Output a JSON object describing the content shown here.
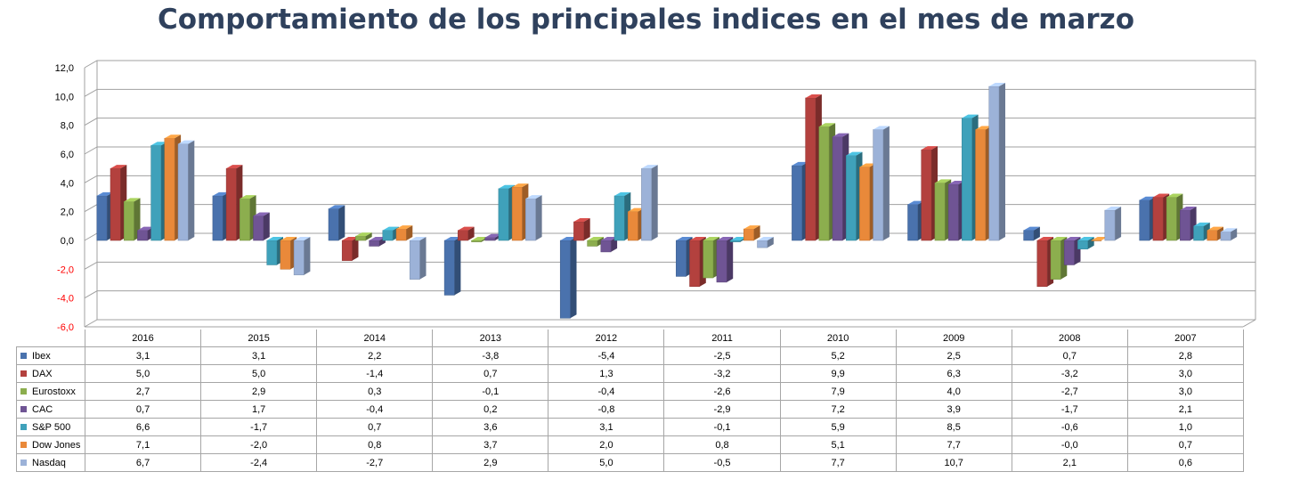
{
  "chart_data": {
    "type": "bar",
    "title": "Comportamiento de los principales indices en el mes de  marzo",
    "categories": [
      "2016",
      "2015",
      "2014",
      "2013",
      "2012",
      "2011",
      "2010",
      "2009",
      "2008",
      "2007"
    ],
    "ylim": [
      -6,
      12
    ],
    "yticks": [
      "-6,0",
      "-4,0",
      "-2,0",
      "0,0",
      "2,0",
      "4,0",
      "6,0",
      "8,0",
      "10,0",
      "12,0"
    ],
    "grid": true,
    "legend": "table-below",
    "series": [
      {
        "name": "Ibex",
        "color": "#4a72ad",
        "values": [
          3.1,
          3.1,
          2.2,
          -3.8,
          -5.4,
          -2.5,
          5.2,
          2.5,
          0.7,
          2.8
        ],
        "labels": [
          "3,1",
          "3,1",
          "2,2",
          "-3,8",
          "-5,4",
          "-2,5",
          "5,2",
          "2,5",
          "0,7",
          "2,8"
        ]
      },
      {
        "name": "DAX",
        "color": "#b3413e",
        "values": [
          5.0,
          5.0,
          -1.4,
          0.7,
          1.3,
          -3.2,
          9.9,
          6.3,
          -3.2,
          3.0
        ],
        "labels": [
          "5,0",
          "5,0",
          "-1,4",
          "0,7",
          "1,3",
          "-3,2",
          "9,9",
          "6,3",
          "-3,2",
          "3,0"
        ]
      },
      {
        "name": "Eurostoxx",
        "color": "#8cae4e",
        "values": [
          2.7,
          2.9,
          0.3,
          -0.1,
          -0.4,
          -2.6,
          7.9,
          4.0,
          -2.7,
          3.0
        ],
        "labels": [
          "2,7",
          "2,9",
          "0,3",
          "-0,1",
          "-0,4",
          "-2,6",
          "7,9",
          "4,0",
          "-2,7",
          "3,0"
        ]
      },
      {
        "name": "CAC",
        "color": "#6f5494",
        "values": [
          0.7,
          1.7,
          -0.4,
          0.2,
          -0.8,
          -2.9,
          7.2,
          3.9,
          -1.7,
          2.1
        ],
        "labels": [
          "0,7",
          "1,7",
          "-0,4",
          "0,2",
          "-0,8",
          "-2,9",
          "7,2",
          "3,9",
          "-1,7",
          "2,1"
        ]
      },
      {
        "name": "S&P 500",
        "color": "#3fa1ba",
        "values": [
          6.6,
          -1.7,
          0.7,
          3.6,
          3.1,
          -0.1,
          5.9,
          8.5,
          -0.6,
          1.0
        ],
        "labels": [
          "6,6",
          "-1,7",
          "0,7",
          "3,6",
          "3,1",
          "-0,1",
          "5,9",
          "8,5",
          "-0,6",
          "1,0"
        ]
      },
      {
        "name": "Dow Jones",
        "color": "#e9893a",
        "values": [
          7.1,
          -2.0,
          0.8,
          3.7,
          2.0,
          0.8,
          5.1,
          7.7,
          0.0,
          0.7
        ],
        "labels": [
          "7,1",
          "-2,0",
          "0,8",
          "3,7",
          "2,0",
          "0,8",
          "5,1",
          "7,7",
          "-0,0",
          "0,7"
        ]
      },
      {
        "name": "Nasdaq",
        "color": "#9cb2d8",
        "values": [
          6.7,
          -2.4,
          -2.7,
          2.9,
          5.0,
          -0.5,
          7.7,
          10.7,
          2.1,
          0.6
        ],
        "labels": [
          "6,7",
          "-2,4",
          "-2,7",
          "2,9",
          "5,0",
          "-0,5",
          "7,7",
          "10,7",
          "2,1",
          "0,6"
        ]
      }
    ]
  }
}
